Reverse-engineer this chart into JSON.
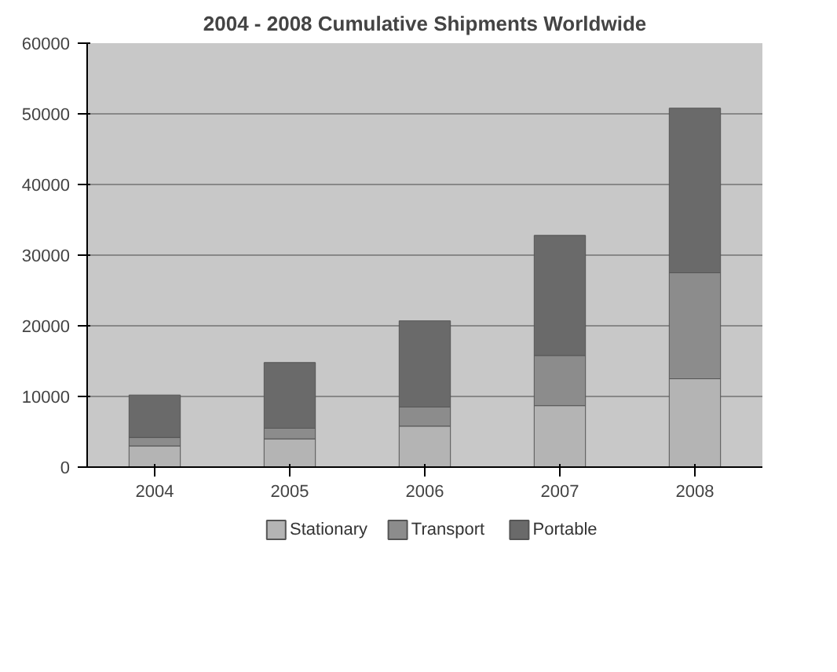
{
  "chart_data": {
    "type": "bar",
    "title": "2004 - 2008 Cumulative Shipments Worldwide",
    "categories": [
      "2004",
      "2005",
      "2006",
      "2007",
      "2008"
    ],
    "stacked": true,
    "series": [
      {
        "name": "Stationary",
        "color": "#b4b4b4",
        "values": [
          3000,
          4000,
          5800,
          8700,
          12500
        ]
      },
      {
        "name": "Transport",
        "color": "#8c8c8c",
        "values": [
          1200,
          1500,
          2700,
          7100,
          15000
        ]
      },
      {
        "name": "Portable",
        "color": "#6a6a6a",
        "values": [
          6000,
          9300,
          12200,
          17000,
          23300
        ]
      }
    ],
    "ylim": [
      0,
      60000
    ],
    "yticks": [
      0,
      10000,
      20000,
      30000,
      40000,
      50000,
      60000
    ],
    "grid": "y",
    "legend": "bottom"
  }
}
